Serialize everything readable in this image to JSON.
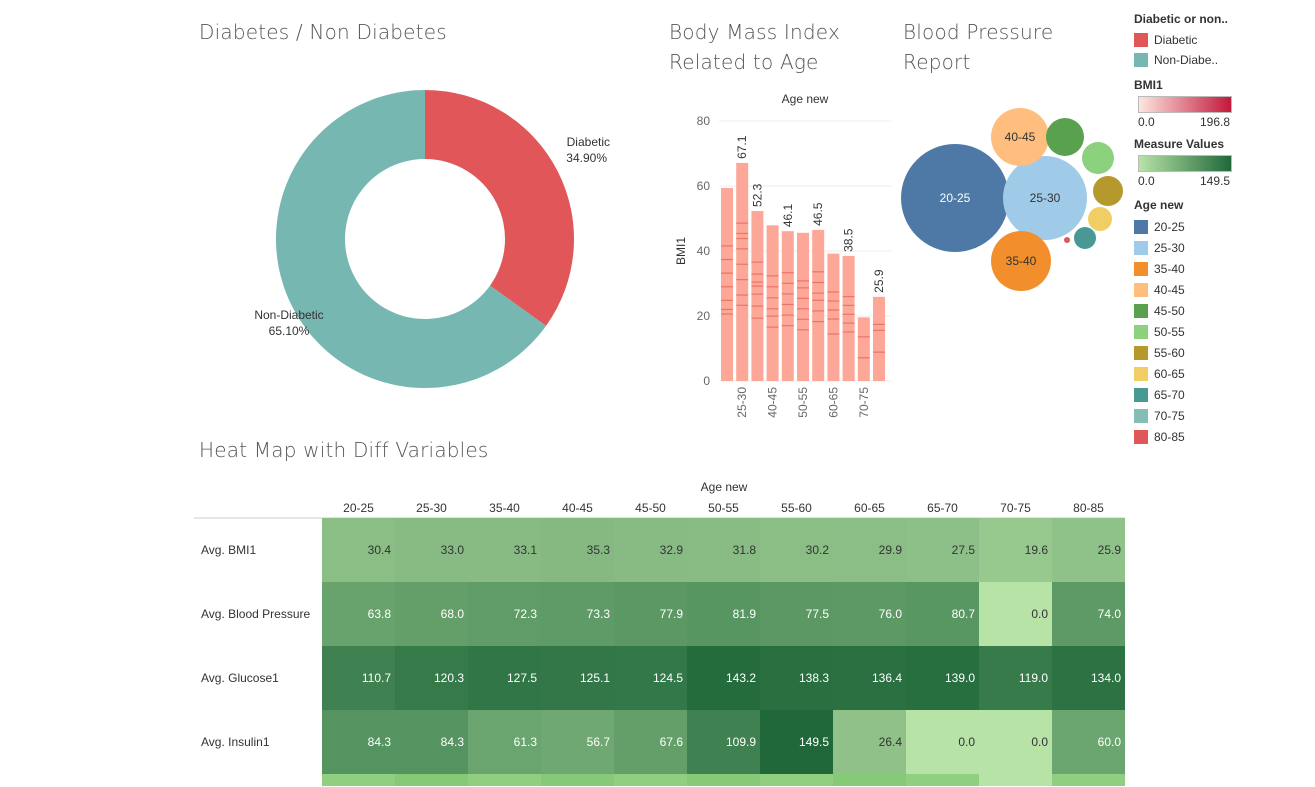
{
  "titles": {
    "donut": "Diabetes / Non Diabetes",
    "bmi_line1": "Body Mass Index",
    "bmi_line2": "Related to Age",
    "bp_line1": "Blood Pressure",
    "bp_line2": "Report",
    "heat": "Heat Map with Diff Variables"
  },
  "legend": {
    "diabetic_title": "Diabetic or non..",
    "diabetic_items": [
      {
        "label": "Diabetic",
        "color": "#e15759"
      },
      {
        "label": "Non-Diabe..",
        "color": "#76b7b2"
      }
    ],
    "bmi_title": "BMI1",
    "bmi_min": "0.0",
    "bmi_max": "196.8",
    "bmi_colors": [
      "#fde6df",
      "#c2183a"
    ],
    "mv_title": "Measure Values",
    "mv_min": "0.0",
    "mv_max": "149.5",
    "mv_colors": [
      "#b8e3a6",
      "#20683a"
    ],
    "age_title": "Age new",
    "age_items": [
      {
        "label": "20-25",
        "color": "#4e79a7"
      },
      {
        "label": "25-30",
        "color": "#a0cbe8"
      },
      {
        "label": "35-40",
        "color": "#f28e2b"
      },
      {
        "label": "40-45",
        "color": "#ffbe7d"
      },
      {
        "label": "45-50",
        "color": "#59a14f"
      },
      {
        "label": "50-55",
        "color": "#8cd17d"
      },
      {
        "label": "55-60",
        "color": "#b6992d"
      },
      {
        "label": "60-65",
        "color": "#f1ce63"
      },
      {
        "label": "65-70",
        "color": "#499894"
      },
      {
        "label": "70-75",
        "color": "#86bcb6"
      },
      {
        "label": "80-85",
        "color": "#e15759"
      }
    ]
  },
  "chart_data": [
    {
      "type": "pie",
      "title": "Diabetes / Non Diabetes",
      "slices": [
        {
          "label": "Diabetic",
          "value": 34.9,
          "display": "34.90%",
          "color": "#e15759"
        },
        {
          "label": "Non-Diabetic",
          "value": 65.1,
          "display": "65.10%",
          "color": "#76b7b2"
        }
      ]
    },
    {
      "type": "bar",
      "title": "Body Mass Index Related to Age",
      "header": "Age new",
      "ylabel": "BMI1",
      "ylim": [
        0,
        80
      ],
      "yticks": [
        0,
        20,
        40,
        60,
        80
      ],
      "values": [
        59.4,
        67.1,
        52.3,
        47.9,
        46.1,
        45.6,
        46.5,
        39.2,
        38.5,
        19.6,
        25.9
      ],
      "value_labels": [
        "",
        "67.1",
        "52.3",
        "",
        "46.1",
        "",
        "46.5",
        "",
        "38.5",
        "",
        "25.9"
      ],
      "tick_labels": [
        "",
        "25-30",
        "",
        "40-45",
        "",
        "50-55",
        "",
        "60-65",
        "",
        "70-75",
        ""
      ]
    },
    {
      "type": "bubble",
      "title": "Blood Pressure Report",
      "bubbles": [
        {
          "label": "20-25",
          "value": 63.8,
          "color": "#4e79a7"
        },
        {
          "label": "25-30",
          "value": 68.0,
          "color": "#a0cbe8"
        },
        {
          "label": "35-40",
          "value": 72.3,
          "color": "#f28e2b"
        },
        {
          "label": "40-45",
          "value": 73.3,
          "color": "#ffbe7d"
        },
        {
          "label": "",
          "value": 77.9,
          "color": "#59a14f"
        },
        {
          "label": "",
          "value": 81.9,
          "color": "#8cd17d"
        },
        {
          "label": "",
          "value": 77.5,
          "color": "#b6992d"
        },
        {
          "label": "",
          "value": 76.0,
          "color": "#f1ce63"
        },
        {
          "label": "",
          "value": 80.7,
          "color": "#499894"
        },
        {
          "label": "",
          "value": 0.0,
          "color": "#86bcb6"
        },
        {
          "label": "",
          "value": 74.0,
          "color": "#e15759"
        }
      ]
    },
    {
      "type": "heatmap",
      "title": "Heat Map with Diff Variables",
      "column_header": "Age new",
      "columns": [
        "20-25",
        "25-30",
        "35-40",
        "40-45",
        "45-50",
        "50-55",
        "55-60",
        "60-65",
        "65-70",
        "70-75",
        "80-85"
      ],
      "rows": [
        {
          "name": "Avg. BMI1",
          "values": [
            30.4,
            33.0,
            33.1,
            35.3,
            32.9,
            31.8,
            30.2,
            29.9,
            27.5,
            19.6,
            25.9
          ]
        },
        {
          "name": "Avg. Blood Pressure",
          "values": [
            63.8,
            68.0,
            72.3,
            73.3,
            77.9,
            81.9,
            77.5,
            76.0,
            80.7,
            0.0,
            74.0
          ]
        },
        {
          "name": "Avg. Glucose1",
          "values": [
            110.7,
            120.3,
            127.5,
            125.1,
            124.5,
            143.2,
            138.3,
            136.4,
            139.0,
            119.0,
            134.0
          ]
        },
        {
          "name": "Avg. Insulin1",
          "values": [
            84.3,
            84.3,
            61.3,
            56.7,
            67.6,
            109.9,
            149.5,
            26.4,
            0.0,
            0.0,
            60.0
          ]
        }
      ],
      "range": [
        0,
        149.5
      ]
    }
  ]
}
